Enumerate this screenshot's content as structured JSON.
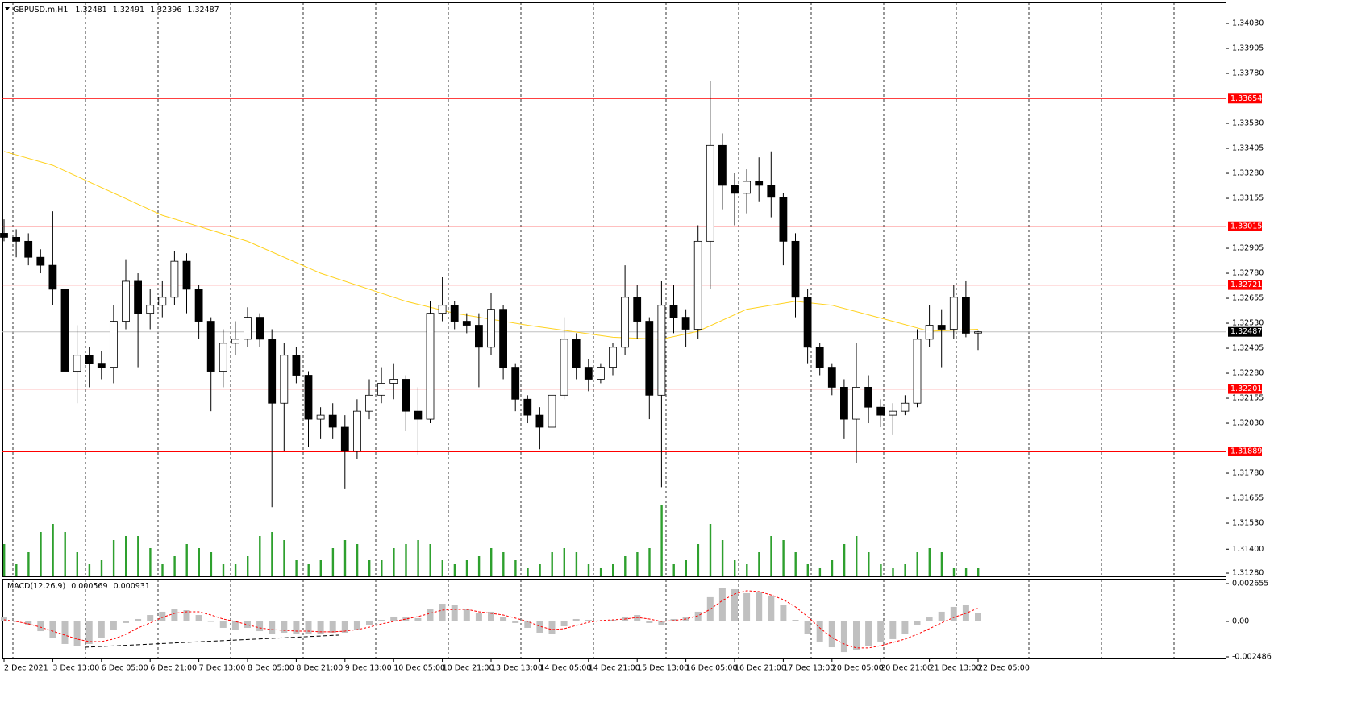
{
  "chart_data": {
    "type": "candlestick",
    "title": "GBPUSD.m,H1",
    "categories": [
      "2 Dec 2021",
      null,
      null,
      null,
      "3 Dec 13:00",
      null,
      null,
      null,
      "6 Dec 05:00",
      null,
      null,
      null,
      "6 Dec 21:00",
      null,
      null,
      null,
      "7 Dec 13:00",
      null,
      null,
      null,
      "8 Dec 05:00",
      null,
      null,
      null,
      "8 Dec 21:00",
      null,
      null,
      null,
      "9 Dec 13:00",
      null,
      null,
      null,
      "10 Dec 05:00",
      null,
      null,
      null,
      "10 Dec 21:00",
      null,
      null,
      null,
      "13 Dec 13:00",
      null,
      null,
      null,
      "14 Dec 05:00",
      null,
      null,
      null,
      "14 Dec 21:00",
      null,
      null,
      null,
      "15 Dec 13:00",
      null,
      null,
      null,
      "16 Dec 05:00",
      null,
      null,
      null,
      "16 Dec 21:00",
      null,
      null,
      null,
      "17 Dec 13:00",
      null,
      null,
      null,
      "20 Dec 05:00",
      null,
      null,
      null,
      "20 Dec 21:00",
      null,
      null,
      null,
      "21 Dec 13:00",
      null,
      null,
      null,
      "22 Dec 05:00"
    ],
    "open": [
      1.3298,
      1.3296,
      1.3294,
      1.3286,
      1.3282,
      1.327,
      1.3229,
      1.3237,
      1.3233,
      1.3231,
      1.3254,
      1.3274,
      1.3258,
      1.3262,
      1.3266,
      1.3284,
      1.327,
      1.3254,
      1.3229,
      1.3243,
      1.3245,
      1.3256,
      1.3245,
      1.3213,
      1.3237,
      1.3227,
      1.3205,
      1.3207,
      1.3201,
      1.3189,
      1.3209,
      1.3217,
      1.3223,
      1.3225,
      1.3209,
      1.3205,
      1.3258,
      1.3262,
      1.3254,
      1.3252,
      1.3241,
      1.326,
      1.3231,
      1.3215,
      1.3207,
      1.3201,
      1.3217,
      1.3245,
      1.3231,
      1.3225,
      1.3231,
      1.3241,
      1.3266,
      1.3254,
      1.3217,
      1.3262,
      1.3256,
      1.325,
      1.3294,
      1.3342,
      1.3322,
      1.3318,
      1.3324,
      1.3322,
      1.3316,
      1.3294,
      1.3266,
      1.3241,
      1.3231,
      1.3221,
      1.3205,
      1.3221,
      1.3211,
      1.3207,
      1.3209,
      1.3213,
      1.3245,
      1.3252,
      1.325,
      1.3266,
      1.32481
    ],
    "high": [
      1.3305,
      1.33,
      1.3298,
      1.329,
      1.3309,
      1.3274,
      1.3252,
      1.3241,
      1.3239,
      1.3262,
      1.3285,
      1.3278,
      1.327,
      1.3274,
      1.3289,
      1.3288,
      1.3272,
      1.3256,
      1.325,
      1.3254,
      1.3261,
      1.3258,
      1.325,
      1.3243,
      1.3241,
      1.3229,
      1.3211,
      1.3213,
      1.3207,
      1.3215,
      1.3225,
      1.3231,
      1.3233,
      1.3227,
      1.3221,
      1.3264,
      1.3276,
      1.3264,
      1.3258,
      1.3258,
      1.3268,
      1.3262,
      1.3233,
      1.3217,
      1.3211,
      1.3225,
      1.3256,
      1.3248,
      1.3235,
      1.3233,
      1.3243,
      1.3282,
      1.3272,
      1.3256,
      1.3274,
      1.3272,
      1.326,
      1.3302,
      1.3374,
      1.3348,
      1.3328,
      1.333,
      1.3336,
      1.3339,
      1.3318,
      1.3298,
      1.327,
      1.3243,
      1.3233,
      1.3225,
      1.3243,
      1.3227,
      1.3215,
      1.3213,
      1.3217,
      1.325,
      1.3262,
      1.326,
      1.3272,
      1.3274,
      1.32491
    ],
    "low": [
      1.3294,
      1.3286,
      1.3282,
      1.3278,
      1.3262,
      1.3209,
      1.3213,
      1.3221,
      1.3225,
      1.3223,
      1.325,
      1.3231,
      1.325,
      1.3256,
      1.3262,
      1.3258,
      1.3245,
      1.3209,
      1.3221,
      1.3237,
      1.3241,
      1.3241,
      1.3161,
      1.3189,
      1.3223,
      1.3191,
      1.3195,
      1.3195,
      1.317,
      1.3185,
      1.3205,
      1.3213,
      1.3215,
      1.3199,
      1.3187,
      1.3203,
      1.3254,
      1.325,
      1.3248,
      1.3221,
      1.3237,
      1.3225,
      1.3209,
      1.3203,
      1.319,
      1.3197,
      1.3215,
      1.3225,
      1.3219,
      1.3223,
      1.3227,
      1.3237,
      1.3245,
      1.3205,
      1.3171,
      1.3248,
      1.3241,
      1.3245,
      1.327,
      1.331,
      1.3302,
      1.3308,
      1.3314,
      1.3306,
      1.3282,
      1.3256,
      1.3233,
      1.3227,
      1.3217,
      1.3195,
      1.3183,
      1.3203,
      1.3201,
      1.3197,
      1.3207,
      1.3211,
      1.3241,
      1.3231,
      1.3245,
      1.3246,
      1.32396
    ],
    "close": [
      1.3296,
      1.3294,
      1.3286,
      1.3282,
      1.327,
      1.3229,
      1.3237,
      1.3233,
      1.3231,
      1.3254,
      1.3274,
      1.3258,
      1.3262,
      1.3266,
      1.3284,
      1.327,
      1.3254,
      1.3229,
      1.3243,
      1.3245,
      1.3256,
      1.3245,
      1.3213,
      1.3237,
      1.3227,
      1.3205,
      1.3207,
      1.3201,
      1.3189,
      1.3209,
      1.3217,
      1.3223,
      1.3225,
      1.3209,
      1.3205,
      1.3258,
      1.3262,
      1.3254,
      1.3252,
      1.3241,
      1.326,
      1.3231,
      1.3215,
      1.3207,
      1.3201,
      1.3217,
      1.3245,
      1.3231,
      1.3225,
      1.3231,
      1.3241,
      1.3266,
      1.3254,
      1.3217,
      1.3262,
      1.3256,
      1.325,
      1.3294,
      1.3342,
      1.3322,
      1.3318,
      1.3324,
      1.3322,
      1.3316,
      1.3294,
      1.3266,
      1.3241,
      1.3231,
      1.3221,
      1.3205,
      1.3221,
      1.3211,
      1.3207,
      1.3209,
      1.3213,
      1.3245,
      1.3252,
      1.325,
      1.3266,
      1.3248,
      1.32487
    ],
    "volume": [
      2000,
      750,
      1500,
      2750,
      3250,
      2750,
      1500,
      750,
      1000,
      2250,
      2500,
      2500,
      1750,
      750,
      1250,
      2000,
      1750,
      1500,
      750,
      750,
      1250,
      2500,
      2750,
      2250,
      1000,
      750,
      1000,
      1750,
      2250,
      2000,
      1000,
      1000,
      1750,
      2000,
      2250,
      2000,
      1000,
      750,
      1000,
      1250,
      1750,
      1500,
      1000,
      500,
      750,
      1500,
      1750,
      1500,
      750,
      500,
      750,
      1250,
      1500,
      1750,
      4400,
      750,
      1000,
      2000,
      3250,
      2250,
      1000,
      750,
      1500,
      2500,
      2250,
      1500,
      750,
      500,
      1000,
      2000,
      2500,
      1500,
      750,
      500,
      750,
      1500,
      1750,
      1500,
      500,
      500,
      500
    ],
    "up_color": "#ffffff",
    "down_color": "#000000",
    "wick_color": "#000000",
    "volume_color": "#2ea02e",
    "ylim": [
      1.31264,
      1.34135
    ],
    "yticks": [
      {
        "value": 1.3403,
        "label": "1.34030"
      },
      {
        "value": 1.33905,
        "label": "1.33905"
      },
      {
        "value": 1.3378,
        "label": "1.33780"
      },
      {
        "value": 1.3353,
        "label": "1.33530"
      },
      {
        "value": 1.33405,
        "label": "1.33405"
      },
      {
        "value": 1.3328,
        "label": "1.33280"
      },
      {
        "value": 1.33155,
        "label": "1.33155"
      },
      {
        "value": 1.32905,
        "label": "1.32905"
      },
      {
        "value": 1.3278,
        "label": "1.32780"
      },
      {
        "value": 1.32655,
        "label": "1.32655"
      },
      {
        "value": 1.3253,
        "label": "1.32530"
      },
      {
        "value": 1.32405,
        "label": "1.32405"
      },
      {
        "value": 1.3228,
        "label": "1.32280"
      },
      {
        "value": 1.32155,
        "label": "1.32155"
      },
      {
        "value": 1.3203,
        "label": "1.32030"
      },
      {
        "value": 1.3178,
        "label": "1.31780"
      },
      {
        "value": 1.31655,
        "label": "1.31655"
      },
      {
        "value": 1.3153,
        "label": "1.31530"
      },
      {
        "value": 1.314,
        "label": "1.31400"
      },
      {
        "value": 1.3128,
        "label": "1.31280"
      }
    ],
    "levels": [
      1.33654,
      1.33015,
      1.32721,
      1.32201,
      1.31889
    ],
    "level_color": "#ff0000",
    "ma": {
      "color": "#ffd21f",
      "x": [
        0,
        4,
        13,
        20,
        26,
        33,
        37,
        43,
        50,
        54,
        57,
        61,
        65,
        68,
        73,
        76,
        80
      ],
      "values": [
        1.3339,
        1.3332,
        1.3307,
        1.3294,
        1.3278,
        1.3264,
        1.3258,
        1.3252,
        1.3246,
        1.3245,
        1.3249,
        1.326,
        1.3264,
        1.3262,
        1.3254,
        1.3249,
        1.325
      ]
    },
    "grid": true,
    "macd": {
      "title": "MACD(12,26,9)",
      "histogram_color": "#c0c0c0",
      "signal_color": "#ff0000",
      "histogram": [
        0.00028,
        0,
        -0.00028,
        -0.00068,
        -0.00113,
        -0.00158,
        -0.0017,
        -0.00158,
        -0.00113,
        -0.00057,
        -0.00011,
        0.00017,
        0.00045,
        0.00068,
        0.00085,
        0.00079,
        0.00045,
        0,
        -0.00045,
        -0.00057,
        -0.00045,
        -0.00068,
        -0.00085,
        -0.00079,
        -0.00085,
        -0.0009,
        -0.00085,
        -0.00079,
        -0.00079,
        -0.00057,
        -0.00023,
        0.00011,
        0.00034,
        0.00028,
        0.00023,
        0.00085,
        0.00124,
        0.00113,
        0.00085,
        0.00057,
        0.00068,
        0.00034,
        -0.00011,
        -0.00045,
        -0.00079,
        -0.00085,
        -0.00034,
        0.00017,
        0.00011,
        6e-05,
        0.00011,
        0.00034,
        0.00045,
        -0.00011,
        -0.00023,
        0.00017,
        0.00028,
        0.00068,
        0.0017,
        0.00237,
        0.00226,
        0.00198,
        0.00203,
        0.00181,
        0.00113,
        0.00011,
        -0.00085,
        -0.00141,
        -0.00181,
        -0.00215,
        -0.00203,
        -0.0017,
        -0.00141,
        -0.00124,
        -0.0009,
        -0.00028,
        0.00028,
        0.00068,
        0.00102,
        0.00113,
        0.000569
      ],
      "signal": [
        0.00011,
        0,
        -0.00017,
        -0.0004,
        -0.00068,
        -0.00096,
        -0.00124,
        -0.00141,
        -0.00141,
        -0.00124,
        -0.0009,
        -0.00045,
        -0.00011,
        0.00028,
        0.00057,
        0.00068,
        0.00068,
        0.00045,
        0.00017,
        0,
        -0.00023,
        -0.00045,
        -0.00057,
        -0.00062,
        -0.00068,
        -0.00068,
        -0.00073,
        -0.00073,
        -0.00068,
        -0.00057,
        -0.0004,
        -0.00017,
        0,
        0.00017,
        0.00034,
        0.00057,
        0.00079,
        0.00085,
        0.00085,
        0.00068,
        0.00057,
        0.00045,
        0.00023,
        0,
        -0.00034,
        -0.00057,
        -0.00051,
        -0.00028,
        -6e-05,
        6e-05,
        0.00011,
        0.00017,
        0.00028,
        0.00017,
        0,
        6e-05,
        0.00017,
        0.0004,
        0.00085,
        0.00147,
        0.00192,
        0.00215,
        0.00209,
        0.00186,
        0.00153,
        0.00102,
        0.00034,
        -0.00045,
        -0.00113,
        -0.00158,
        -0.00186,
        -0.00186,
        -0.0017,
        -0.00147,
        -0.00124,
        -0.0009,
        -0.00051,
        -0.00011,
        0.00028,
        0.00057,
        0.000931
      ],
      "ylim": [
        -0.002486,
        0.002655
      ],
      "yticks": [
        0.002655,
        {
          "value": 0,
          "label": "0.00"
        },
        -0.002486
      ]
    }
  }
}
